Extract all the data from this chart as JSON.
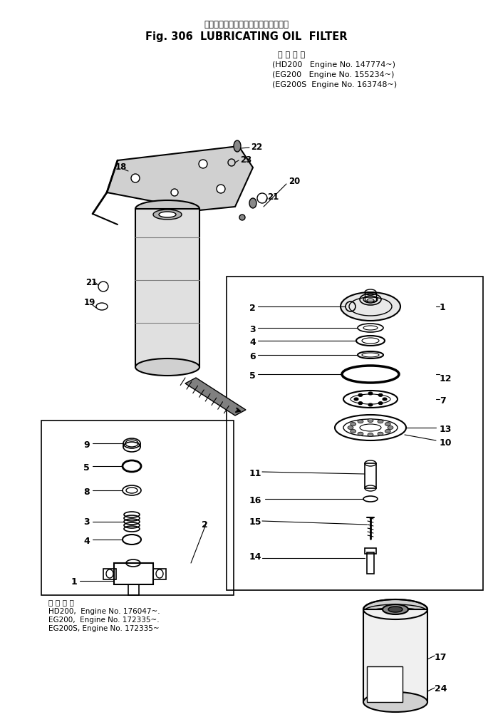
{
  "title_japanese": "ルーブリケーティングオイルフィルタ",
  "title_english": "Fig. 306  LUBRICATING OIL  FILTER",
  "applicable_header": "適 用 号 機",
  "applicable_lines_top": [
    "(HD200   Engine No. 147774~)",
    "(EG200   Engine No. 155234~)",
    "(EG200S  Engine No. 163748~)"
  ],
  "applicable_lines_bottom": [
    "適 用 号 機",
    "HD200,  Engine No. 176047~.",
    "EG200,  Engine No. 172335~.",
    "EG200S, Engine No. 172335~"
  ],
  "bg_color": "#ffffff",
  "line_color": "#000000",
  "text_color": "#000000",
  "fig_width": 6.92,
  "fig_height": 10.06
}
